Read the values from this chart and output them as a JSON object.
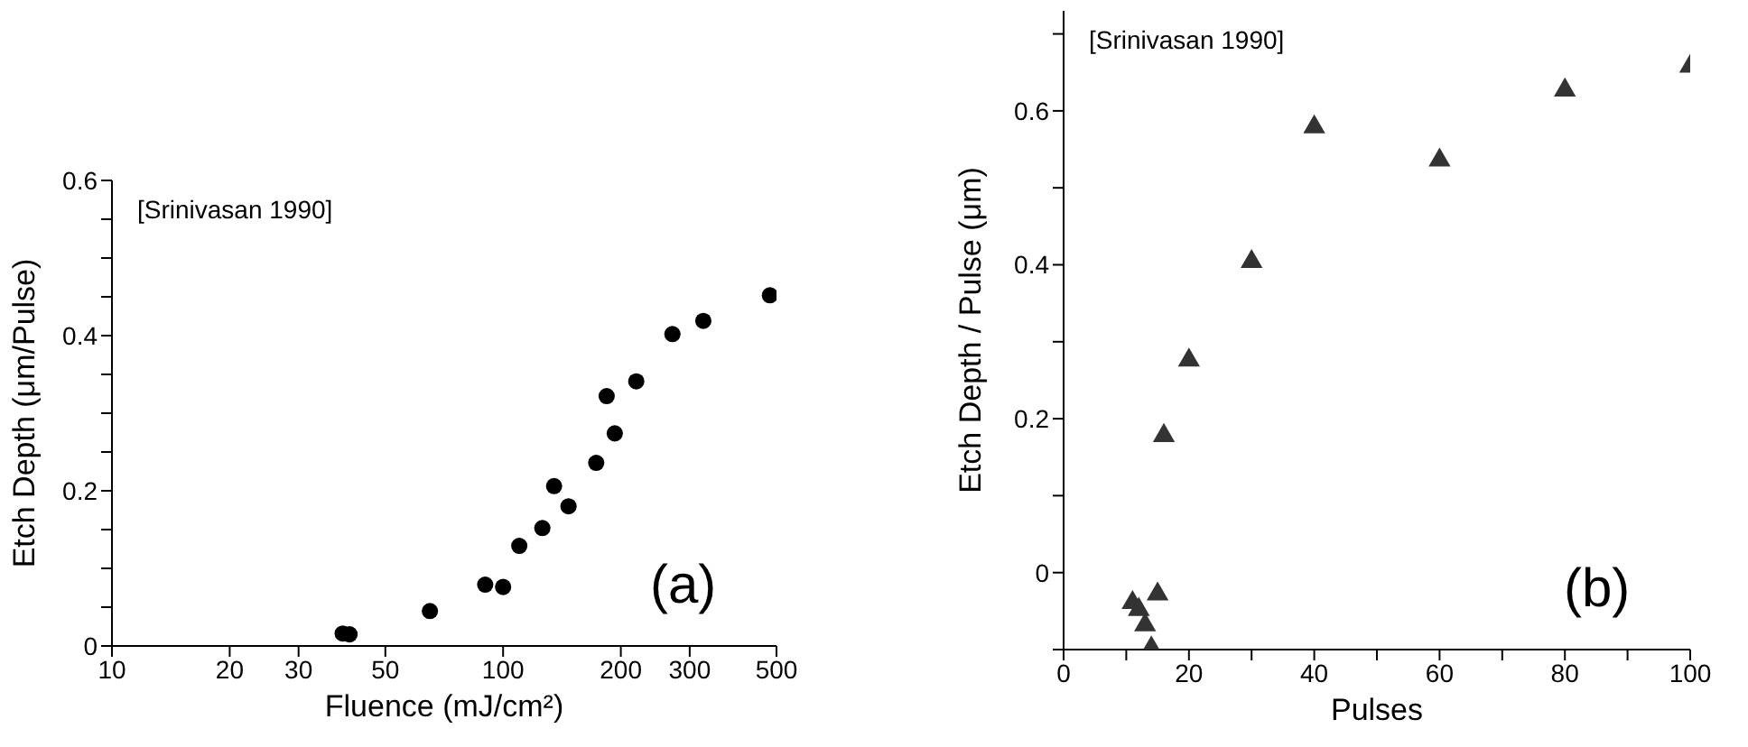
{
  "chart_data": [
    {
      "type": "scatter",
      "xlabel": "Fluence (mJ/cm²)",
      "ylabel": "Etch Depth (μm/Pulse)",
      "log": "x",
      "marker": "circle",
      "grid": false,
      "xlim": [
        10,
        500
      ],
      "xticks": [
        10,
        20,
        30,
        50,
        100,
        200,
        300,
        500
      ],
      "ylim": [
        0,
        0.6
      ],
      "yticks": [
        0,
        {
          "value": 0.05,
          "label": null
        },
        {
          "value": 0.1,
          "label": null
        },
        {
          "value": 0.15,
          "label": null
        },
        0.2,
        {
          "value": 0.25,
          "label": null
        },
        {
          "value": 0.3,
          "label": null
        },
        {
          "value": 0.35,
          "label": null
        },
        0.4,
        {
          "value": 0.45,
          "label": null
        },
        {
          "value": 0.5,
          "label": null
        },
        {
          "value": 0.55,
          "label": null
        },
        0.6
      ],
      "annotations": [
        "[Srinivasan 1990]",
        "(a)"
      ],
      "series": [
        {
          "color": "#000000",
          "x": [
            38.9,
            40.5,
            65,
            90,
            100,
            110,
            126,
            135,
            147,
            173,
            184,
            193,
            219,
            271,
            325,
            481
          ],
          "values": [
            0.016,
            0.015,
            0.045,
            0.079,
            0.076,
            0.129,
            0.152,
            0.206,
            0.18,
            0.236,
            0.322,
            0.274,
            0.341,
            0.402,
            0.419,
            0.452
          ]
        }
      ]
    },
    {
      "type": "scatter",
      "xlabel": "Pulses",
      "ylabel": "Etch Depth / Pulse (μm)",
      "marker": "triangle",
      "grid": false,
      "xlim": [
        0,
        100
      ],
      "xticks": [
        0,
        {
          "value": 10,
          "label": null
        },
        20,
        {
          "value": 30,
          "label": null
        },
        40,
        {
          "value": 50,
          "label": null
        },
        60,
        {
          "value": 70,
          "label": null
        },
        80,
        {
          "value": 90,
          "label": null
        },
        100
      ],
      "ylim": [
        -0.1,
        0.73
      ],
      "yticks": [
        {
          "value": -0.1,
          "label": null
        },
        0,
        {
          "value": 0.1,
          "label": null
        },
        0.2,
        {
          "value": 0.3,
          "label": null
        },
        0.4,
        {
          "value": 0.5,
          "label": null
        },
        0.6,
        {
          "value": 0.7,
          "label": null
        }
      ],
      "annotations": [
        "[Srinivasan 1990]",
        "(b)"
      ],
      "series": [
        {
          "color": "#333333",
          "x": [
            11,
            12,
            13,
            15,
            14,
            16,
            20,
            30,
            40,
            60,
            80,
            100
          ],
          "values": [
            -0.039,
            -0.048,
            -0.068,
            -0.028,
            -0.098,
            0.178,
            0.276,
            0.404,
            0.579,
            0.536,
            0.627,
            0.658
          ]
        }
      ]
    }
  ]
}
